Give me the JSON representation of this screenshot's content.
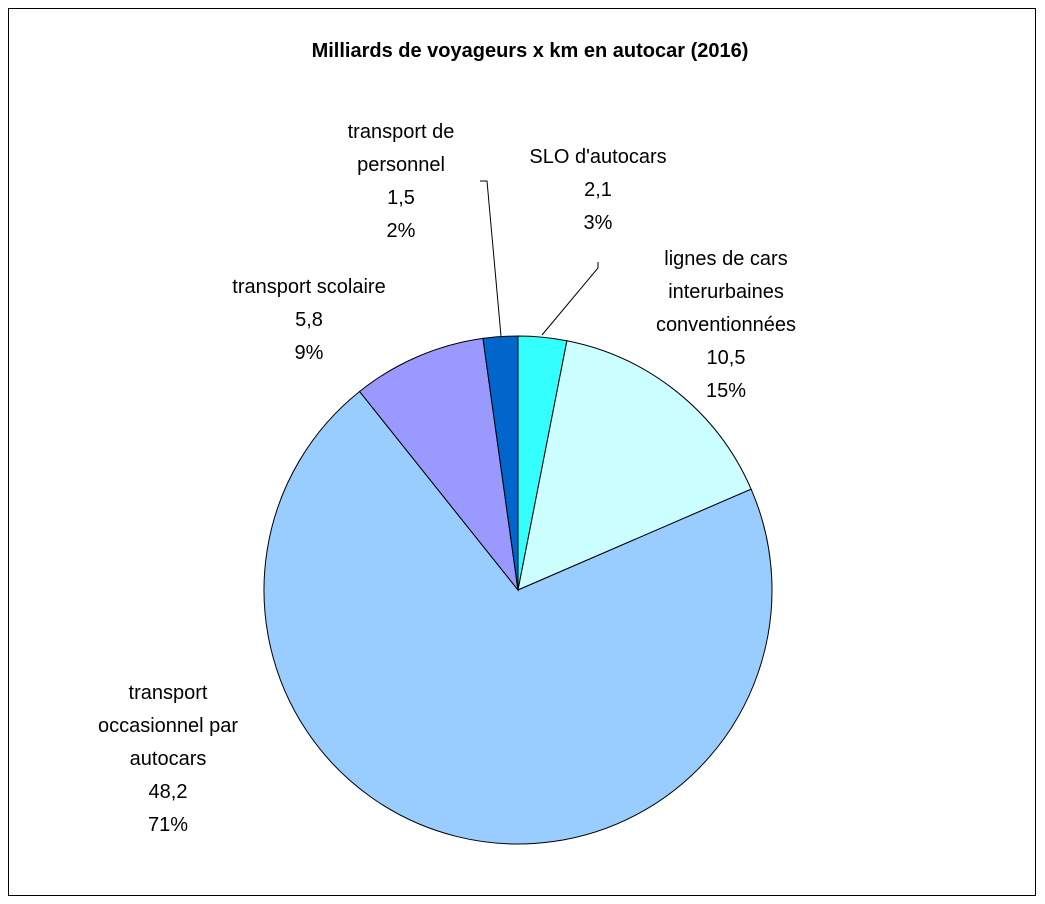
{
  "chart_data": {
    "type": "pie",
    "title": "Milliards de voyageurs x km en autocar (2016)",
    "categories": [
      "SLO d'autocars",
      "lignes de cars interurbaines conventionnées",
      "transport occasionnel par autocars",
      "transport scolaire",
      "transport de personnel"
    ],
    "values": [
      2.1,
      10.5,
      48.2,
      5.8,
      1.5
    ],
    "value_labels": [
      "2,1",
      "10,5",
      "48,2",
      "5,8",
      "1,5"
    ],
    "percents": [
      3,
      15,
      71,
      9,
      2
    ],
    "percent_labels": [
      "3%",
      "15%",
      "71%",
      "9%",
      "2%"
    ],
    "colors": [
      "#33ffff",
      "#ccffff",
      "#99ccff",
      "#9999ff",
      "#0066cc"
    ]
  }
}
